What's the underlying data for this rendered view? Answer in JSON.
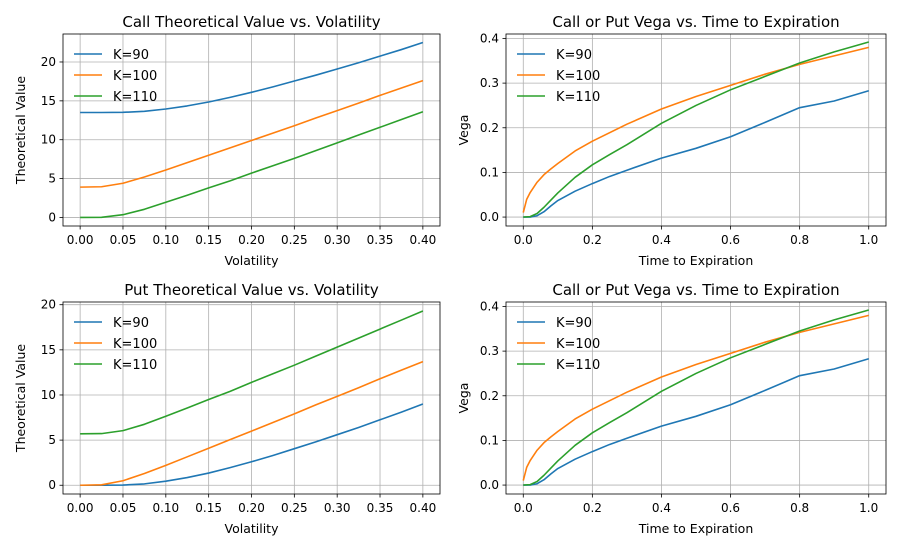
{
  "chart_data": [
    {
      "type": "line",
      "title": "Call Theoretical Value vs. Volatility",
      "xlabel": "Volatility",
      "ylabel": "Theoretical Value",
      "xlim": [
        -0.02,
        0.42
      ],
      "ylim": [
        -1.1,
        23.6
      ],
      "xticks": [
        0.0,
        0.05,
        0.1,
        0.15,
        0.2,
        0.25,
        0.3,
        0.35,
        0.4
      ],
      "xtick_labels": [
        "0.00",
        "0.05",
        "0.10",
        "0.15",
        "0.20",
        "0.25",
        "0.30",
        "0.35",
        "0.40"
      ],
      "yticks": [
        0,
        5,
        10,
        15,
        20
      ],
      "ytick_labels": [
        "0",
        "5",
        "10",
        "15",
        "20"
      ],
      "grid": true,
      "legend": "upper-left",
      "series": [
        {
          "name": "K=90",
          "color": "#1f77b4",
          "x": [
            0.0,
            0.025,
            0.05,
            0.075,
            0.1,
            0.125,
            0.15,
            0.175,
            0.2,
            0.225,
            0.25,
            0.275,
            0.3,
            0.325,
            0.35,
            0.375,
            0.4
          ],
          "y": [
            13.5,
            13.5,
            13.52,
            13.65,
            13.95,
            14.35,
            14.85,
            15.45,
            16.1,
            16.8,
            17.55,
            18.3,
            19.1,
            19.9,
            20.75,
            21.6,
            22.5
          ]
        },
        {
          "name": "K=100",
          "color": "#ff7f0e",
          "x": [
            0.0,
            0.025,
            0.05,
            0.075,
            0.1,
            0.125,
            0.15,
            0.175,
            0.2,
            0.225,
            0.25,
            0.275,
            0.3,
            0.325,
            0.35,
            0.375,
            0.4
          ],
          "y": [
            3.9,
            3.95,
            4.4,
            5.2,
            6.1,
            7.05,
            8.0,
            8.95,
            9.9,
            10.85,
            11.8,
            12.8,
            13.75,
            14.7,
            15.7,
            16.65,
            17.6
          ]
        },
        {
          "name": "K=110",
          "color": "#2ca02c",
          "x": [
            0.0,
            0.025,
            0.05,
            0.075,
            0.1,
            0.125,
            0.15,
            0.175,
            0.2,
            0.225,
            0.25,
            0.275,
            0.3,
            0.325,
            0.35,
            0.375,
            0.4
          ],
          "y": [
            0.0,
            0.02,
            0.35,
            1.05,
            1.95,
            2.85,
            3.8,
            4.7,
            5.7,
            6.65,
            7.6,
            8.6,
            9.6,
            10.6,
            11.6,
            12.6,
            13.6
          ]
        }
      ]
    },
    {
      "type": "line",
      "title": "Call or Put Vega vs. Time to Expiration",
      "xlabel": "Time to Expiration",
      "ylabel": "Vega",
      "xlim": [
        -0.05,
        1.05
      ],
      "ylim": [
        -0.02,
        0.41
      ],
      "xticks": [
        0.0,
        0.2,
        0.4,
        0.6,
        0.8,
        1.0
      ],
      "xtick_labels": [
        "0.0",
        "0.2",
        "0.4",
        "0.6",
        "0.8",
        "1.0"
      ],
      "yticks": [
        0.0,
        0.1,
        0.2,
        0.3,
        0.4
      ],
      "ytick_labels": [
        "0.0",
        "0.1",
        "0.2",
        "0.3",
        "0.4"
      ],
      "grid": true,
      "legend": "upper-left",
      "series": [
        {
          "name": "K=90",
          "color": "#1f77b4",
          "x": [
            0.0,
            0.02,
            0.04,
            0.06,
            0.08,
            0.1,
            0.15,
            0.2,
            0.25,
            0.3,
            0.4,
            0.5,
            0.6,
            0.7,
            0.8,
            0.9,
            1.0
          ],
          "y": [
            0.0,
            0.0,
            0.003,
            0.012,
            0.025,
            0.037,
            0.058,
            0.075,
            0.091,
            0.105,
            0.132,
            0.154,
            0.18,
            0.212,
            0.245,
            0.26,
            0.283
          ]
        },
        {
          "name": "K=100",
          "color": "#ff7f0e",
          "x": [
            0.0,
            0.01,
            0.02,
            0.04,
            0.06,
            0.08,
            0.1,
            0.15,
            0.2,
            0.3,
            0.4,
            0.5,
            0.6,
            0.7,
            0.8,
            0.9,
            1.0
          ],
          "y": [
            0.01,
            0.04,
            0.055,
            0.078,
            0.095,
            0.108,
            0.12,
            0.148,
            0.17,
            0.208,
            0.242,
            0.27,
            0.295,
            0.32,
            0.342,
            0.361,
            0.38
          ]
        },
        {
          "name": "K=110",
          "color": "#2ca02c",
          "x": [
            0.0,
            0.02,
            0.04,
            0.06,
            0.08,
            0.1,
            0.15,
            0.2,
            0.25,
            0.3,
            0.4,
            0.5,
            0.6,
            0.7,
            0.8,
            0.9,
            1.0
          ],
          "y": [
            0.0,
            0.001,
            0.008,
            0.022,
            0.038,
            0.054,
            0.089,
            0.117,
            0.14,
            0.162,
            0.21,
            0.25,
            0.285,
            0.315,
            0.345,
            0.37,
            0.392
          ]
        }
      ]
    },
    {
      "type": "line",
      "title": "Put Theoretical Value vs. Volatility",
      "xlabel": "Volatility",
      "ylabel": "Theoretical Value",
      "xlim": [
        -0.02,
        0.42
      ],
      "ylim": [
        -0.97,
        20.3
      ],
      "xticks": [
        0.0,
        0.05,
        0.1,
        0.15,
        0.2,
        0.25,
        0.3,
        0.35,
        0.4
      ],
      "xtick_labels": [
        "0.00",
        "0.05",
        "0.10",
        "0.15",
        "0.20",
        "0.25",
        "0.30",
        "0.35",
        "0.40"
      ],
      "yticks": [
        0,
        5,
        10,
        15,
        20
      ],
      "ytick_labels": [
        "0",
        "5",
        "10",
        "15",
        "20"
      ],
      "grid": true,
      "legend": "upper-left",
      "series": [
        {
          "name": "K=90",
          "color": "#1f77b4",
          "x": [
            0.0,
            0.025,
            0.05,
            0.075,
            0.1,
            0.125,
            0.15,
            0.175,
            0.2,
            0.225,
            0.25,
            0.275,
            0.3,
            0.325,
            0.35,
            0.375,
            0.4
          ],
          "y": [
            0.0,
            0.0,
            0.02,
            0.15,
            0.45,
            0.85,
            1.35,
            1.95,
            2.6,
            3.3,
            4.05,
            4.8,
            5.6,
            6.4,
            7.25,
            8.1,
            9.0
          ]
        },
        {
          "name": "K=100",
          "color": "#ff7f0e",
          "x": [
            0.0,
            0.025,
            0.05,
            0.075,
            0.1,
            0.125,
            0.15,
            0.175,
            0.2,
            0.225,
            0.25,
            0.275,
            0.3,
            0.325,
            0.35,
            0.375,
            0.4
          ],
          "y": [
            0.0,
            0.05,
            0.5,
            1.3,
            2.2,
            3.15,
            4.1,
            5.05,
            6.0,
            6.95,
            7.9,
            8.9,
            9.85,
            10.8,
            11.8,
            12.75,
            13.7
          ]
        },
        {
          "name": "K=110",
          "color": "#2ca02c",
          "x": [
            0.0,
            0.025,
            0.05,
            0.075,
            0.1,
            0.125,
            0.15,
            0.175,
            0.2,
            0.225,
            0.25,
            0.275,
            0.3,
            0.325,
            0.35,
            0.375,
            0.4
          ],
          "y": [
            5.7,
            5.72,
            6.05,
            6.75,
            7.65,
            8.55,
            9.5,
            10.4,
            11.4,
            12.35,
            13.3,
            14.3,
            15.3,
            16.3,
            17.3,
            18.3,
            19.3
          ]
        }
      ]
    },
    {
      "type": "line",
      "title": "Call or Put Vega vs. Time to Expiration",
      "xlabel": "Time to Expiration",
      "ylabel": "Vega",
      "xlim": [
        -0.05,
        1.05
      ],
      "ylim": [
        -0.02,
        0.41
      ],
      "xticks": [
        0.0,
        0.2,
        0.4,
        0.6,
        0.8,
        1.0
      ],
      "xtick_labels": [
        "0.0",
        "0.2",
        "0.4",
        "0.6",
        "0.8",
        "1.0"
      ],
      "yticks": [
        0.0,
        0.1,
        0.2,
        0.3,
        0.4
      ],
      "ytick_labels": [
        "0.0",
        "0.1",
        "0.2",
        "0.3",
        "0.4"
      ],
      "grid": true,
      "legend": "upper-left",
      "series": [
        {
          "name": "K=90",
          "color": "#1f77b4",
          "x": [
            0.0,
            0.02,
            0.04,
            0.06,
            0.08,
            0.1,
            0.15,
            0.2,
            0.25,
            0.3,
            0.4,
            0.5,
            0.6,
            0.7,
            0.8,
            0.9,
            1.0
          ],
          "y": [
            0.0,
            0.0,
            0.003,
            0.012,
            0.025,
            0.037,
            0.058,
            0.075,
            0.091,
            0.105,
            0.132,
            0.154,
            0.18,
            0.212,
            0.245,
            0.26,
            0.283
          ]
        },
        {
          "name": "K=100",
          "color": "#ff7f0e",
          "x": [
            0.0,
            0.01,
            0.02,
            0.04,
            0.06,
            0.08,
            0.1,
            0.15,
            0.2,
            0.3,
            0.4,
            0.5,
            0.6,
            0.7,
            0.8,
            0.9,
            1.0
          ],
          "y": [
            0.01,
            0.04,
            0.055,
            0.078,
            0.095,
            0.108,
            0.12,
            0.148,
            0.17,
            0.208,
            0.242,
            0.27,
            0.295,
            0.32,
            0.342,
            0.361,
            0.38
          ]
        },
        {
          "name": "K=110",
          "color": "#2ca02c",
          "x": [
            0.0,
            0.02,
            0.04,
            0.06,
            0.08,
            0.1,
            0.15,
            0.2,
            0.25,
            0.3,
            0.4,
            0.5,
            0.6,
            0.7,
            0.8,
            0.9,
            1.0
          ],
          "y": [
            0.0,
            0.001,
            0.008,
            0.022,
            0.038,
            0.054,
            0.089,
            0.117,
            0.14,
            0.162,
            0.21,
            0.25,
            0.285,
            0.315,
            0.345,
            0.37,
            0.392
          ]
        }
      ]
    }
  ]
}
